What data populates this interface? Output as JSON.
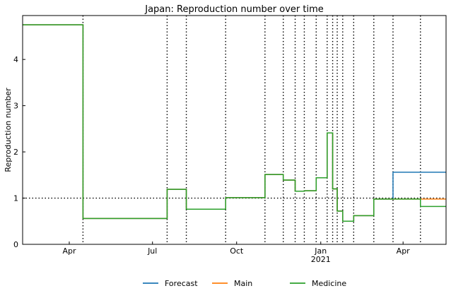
{
  "chart_data": {
    "type": "line",
    "title": "Japan: Reproduction number over time",
    "xlabel": "",
    "ylabel": "Reproduction number",
    "xlim": [
      "2020-02-10",
      "2021-05-18"
    ],
    "ylim": [
      0,
      4.95
    ],
    "x_ticks": [
      {
        "date": "2020-04-01",
        "label": "Apr",
        "sublabel": ""
      },
      {
        "date": "2020-07-01",
        "label": "Jul",
        "sublabel": ""
      },
      {
        "date": "2020-10-01",
        "label": "Oct",
        "sublabel": ""
      },
      {
        "date": "2021-01-01",
        "label": "Jan",
        "sublabel": "2021"
      },
      {
        "date": "2021-04-01",
        "label": "Apr",
        "sublabel": ""
      }
    ],
    "y_ticks": [
      0,
      1,
      2,
      3,
      4
    ],
    "reference_line": {
      "y": 1,
      "style": "dotted"
    },
    "change_dates": [
      "2020-04-16",
      "2020-07-17",
      "2020-08-07",
      "2020-09-19",
      "2020-11-01",
      "2020-11-21",
      "2020-12-04",
      "2020-12-14",
      "2020-12-27",
      "2021-01-08",
      "2021-01-14",
      "2021-01-19",
      "2021-01-25",
      "2021-02-06",
      "2021-02-28",
      "2021-03-21",
      "2021-04-20"
    ],
    "series": [
      {
        "name": "Forecast",
        "color": "#1f77b4",
        "x": [
          "2020-02-10",
          "2020-04-16",
          "2020-07-17",
          "2020-08-07",
          "2020-09-19",
          "2020-11-01",
          "2020-11-21",
          "2020-12-04",
          "2020-12-14",
          "2020-12-27",
          "2021-01-08",
          "2021-01-14",
          "2021-01-19",
          "2021-01-25",
          "2021-02-06",
          "2021-02-28",
          "2021-03-21",
          "2021-05-18"
        ],
        "values": [
          4.75,
          0.56,
          1.19,
          0.76,
          1.01,
          1.51,
          1.39,
          1.15,
          1.16,
          1.44,
          2.41,
          1.2,
          0.72,
          0.5,
          0.62,
          0.98,
          1.56,
          1.56
        ]
      },
      {
        "name": "Main",
        "color": "#ff7f0e",
        "x": [
          "2020-02-10",
          "2020-04-16",
          "2020-07-17",
          "2020-08-07",
          "2020-09-19",
          "2020-11-01",
          "2020-11-21",
          "2020-12-04",
          "2020-12-14",
          "2020-12-27",
          "2021-01-08",
          "2021-01-14",
          "2021-01-19",
          "2021-01-25",
          "2021-02-06",
          "2021-02-28",
          "2021-05-18"
        ],
        "values": [
          4.75,
          0.56,
          1.19,
          0.76,
          1.01,
          1.51,
          1.39,
          1.15,
          1.16,
          1.44,
          2.41,
          1.2,
          0.72,
          0.5,
          0.62,
          0.98,
          0.98
        ]
      },
      {
        "name": "Medicine",
        "color": "#2ca02c",
        "x": [
          "2020-02-10",
          "2020-04-16",
          "2020-07-17",
          "2020-08-07",
          "2020-09-19",
          "2020-11-01",
          "2020-11-21",
          "2020-12-04",
          "2020-12-14",
          "2020-12-27",
          "2021-01-08",
          "2021-01-14",
          "2021-01-19",
          "2021-01-25",
          "2021-02-06",
          "2021-02-28",
          "2021-04-20",
          "2021-05-18"
        ],
        "values": [
          4.75,
          0.56,
          1.19,
          0.76,
          1.01,
          1.51,
          1.39,
          1.15,
          1.16,
          1.44,
          2.41,
          1.2,
          0.72,
          0.5,
          0.62,
          0.98,
          0.82,
          0.82
        ]
      }
    ],
    "legend": {
      "placement": "bottom-center"
    },
    "grid": false
  }
}
